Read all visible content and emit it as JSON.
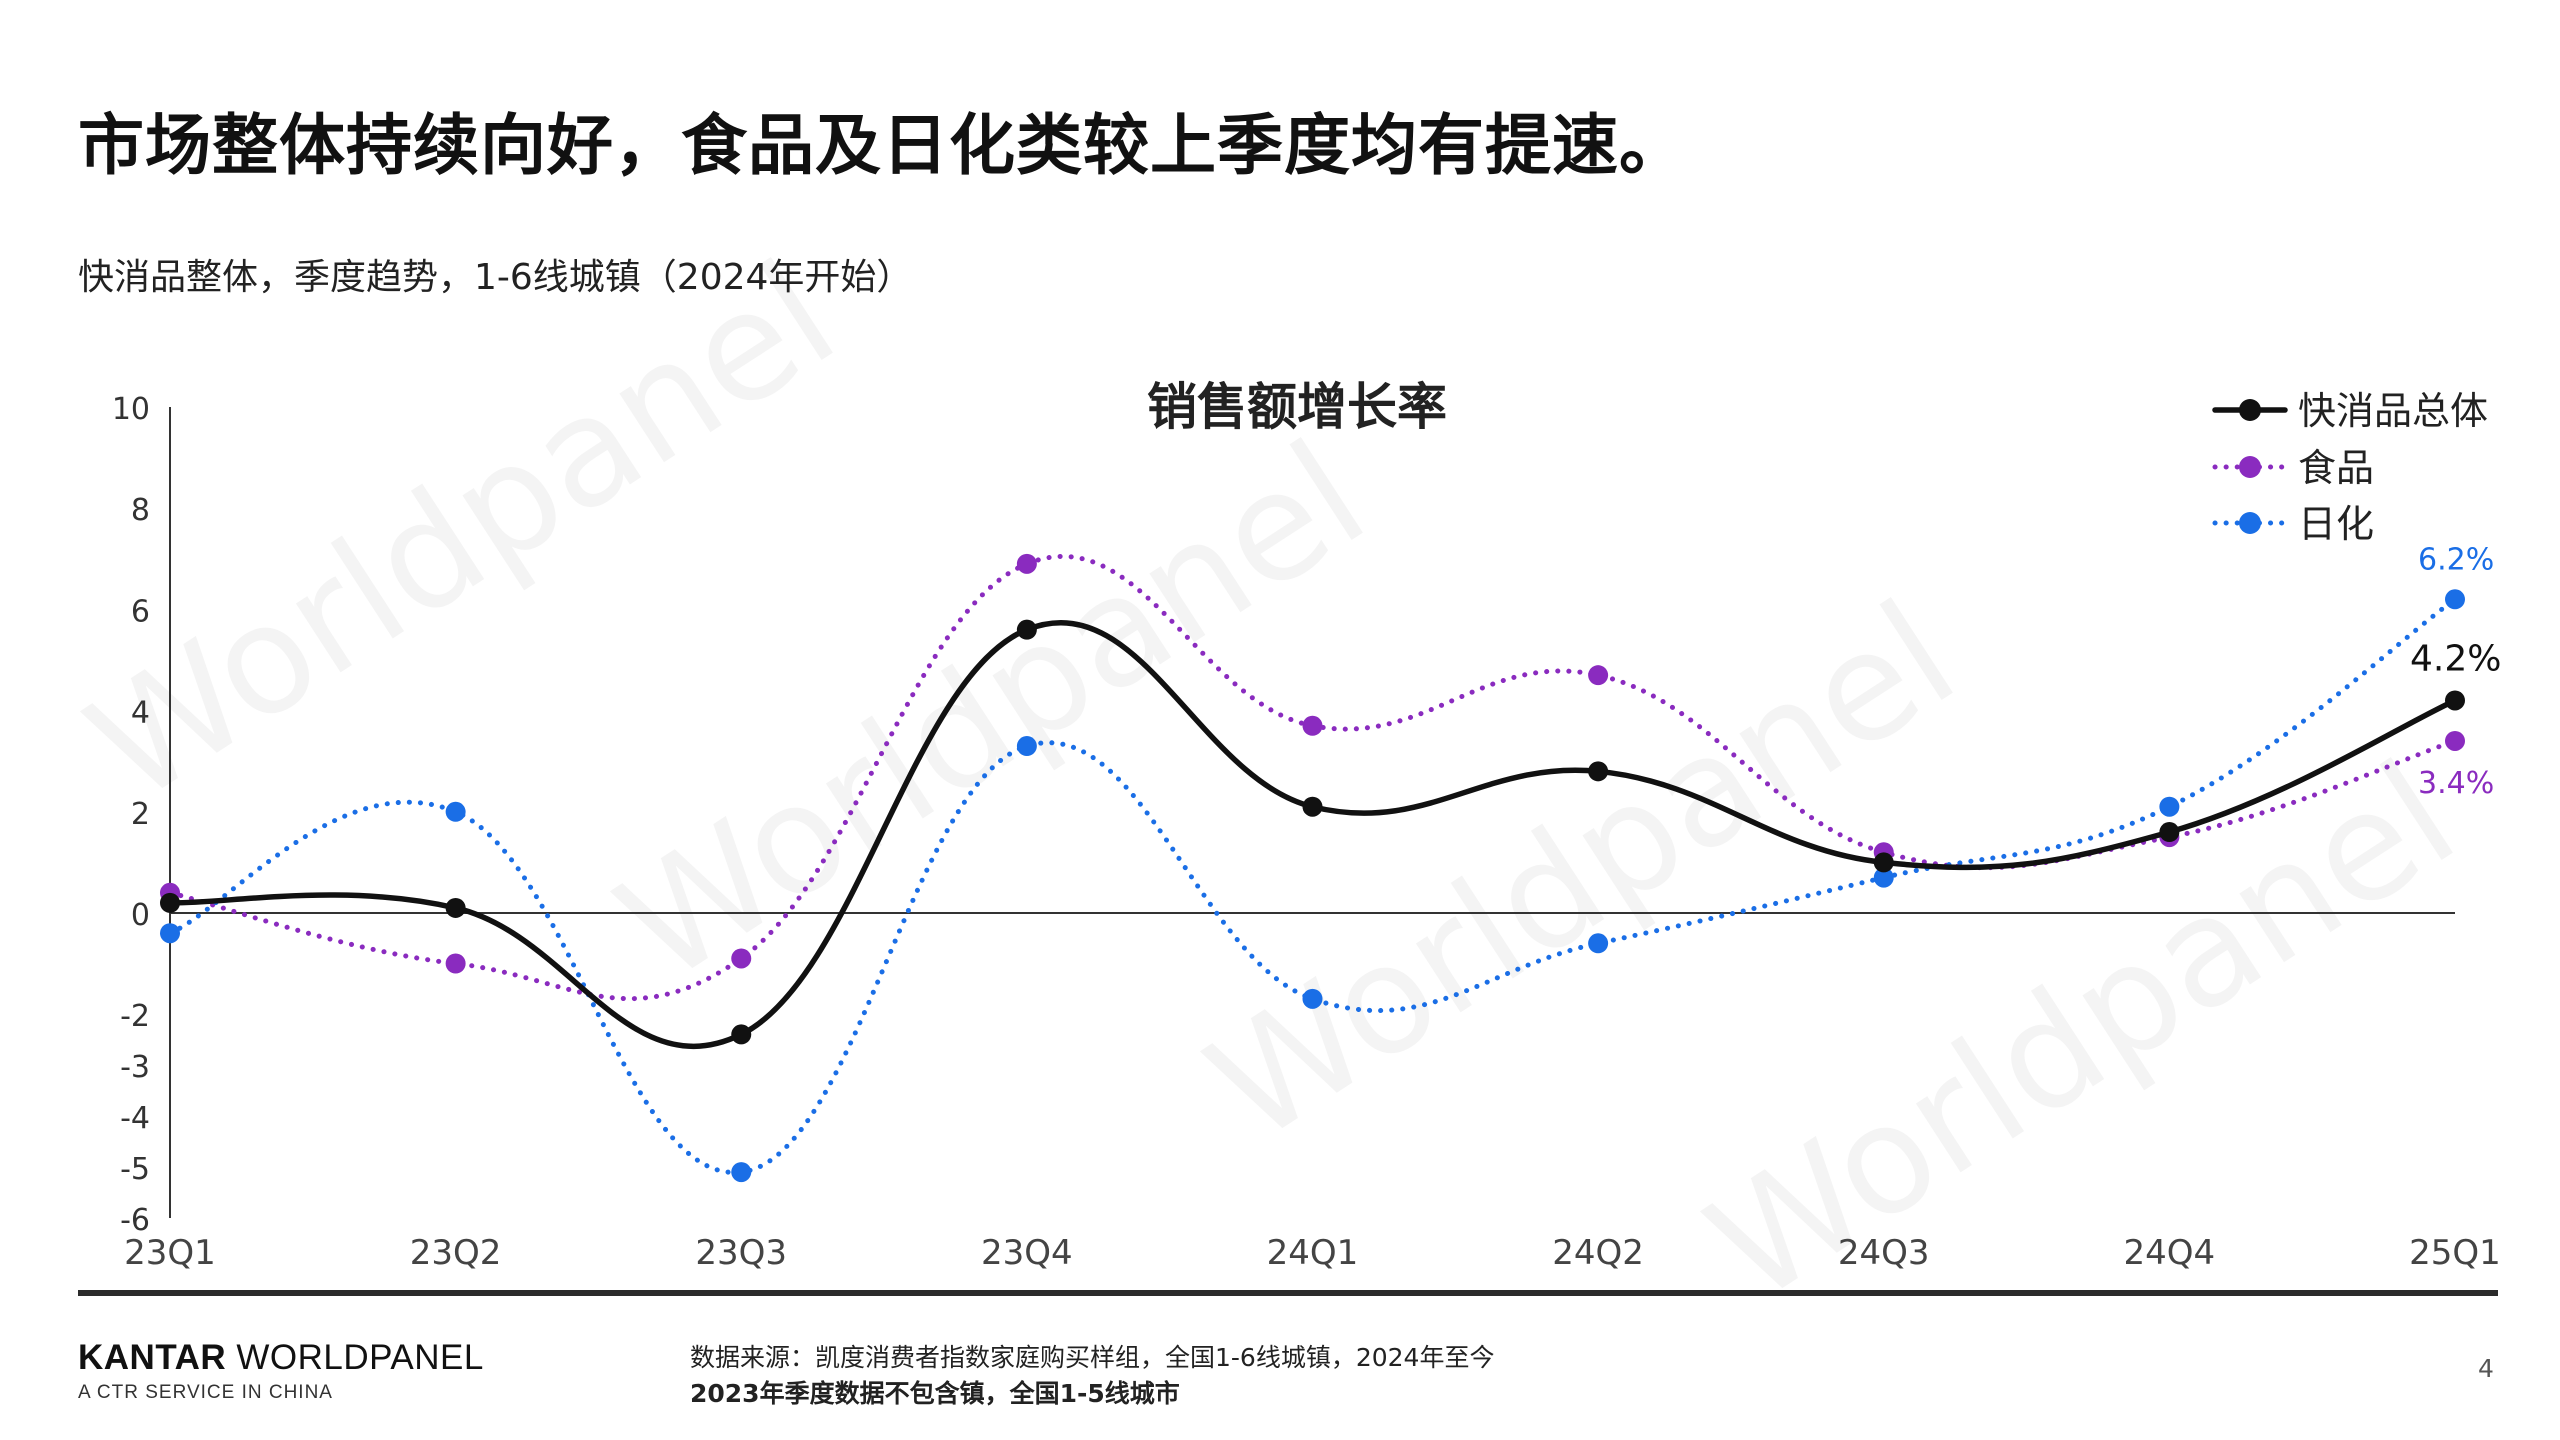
{
  "header": {
    "title": "市场整体持续向好，食品及日化类较上季度均有提速。",
    "subtitle": "快消品整体，季度趋势，1-6线城镇（2024年开始）"
  },
  "watermark": "Worldpanel",
  "chart_data": {
    "type": "line",
    "title": "销售额增长率",
    "categories": [
      "23Q1",
      "23Q2",
      "23Q3",
      "23Q4",
      "24Q1",
      "24Q2",
      "24Q3",
      "24Q4",
      "25Q1"
    ],
    "y_ticks": [
      10,
      8,
      6,
      4,
      2,
      0,
      -2,
      -3,
      -4,
      -5,
      -6
    ],
    "ylim": [
      -6,
      10
    ],
    "legend_position": "top-right",
    "grid": false,
    "series": [
      {
        "name": "快消品总体",
        "color": "#111111",
        "style": "solid",
        "values": [
          0.2,
          0.1,
          -2.4,
          5.6,
          2.1,
          2.8,
          1.0,
          1.6,
          4.2
        ],
        "end_label": "4.2%"
      },
      {
        "name": "食品",
        "color": "#8A2BBF",
        "style": "dotted",
        "values": [
          0.4,
          -1.0,
          -0.9,
          6.9,
          3.7,
          4.7,
          1.2,
          1.5,
          3.4
        ],
        "end_label": "3.4%"
      },
      {
        "name": "日化",
        "color": "#1a6ee6",
        "style": "dotted",
        "values": [
          -0.4,
          2.0,
          -5.1,
          3.3,
          -1.7,
          -0.6,
          0.7,
          2.1,
          6.2
        ],
        "end_label": "6.2%"
      }
    ]
  },
  "footer": {
    "brand_bold": "KANTAR",
    "brand_rest": " WORLDPANEL",
    "brand_sub": "A CTR SERVICE IN CHINA",
    "source_line1": "数据来源：凯度消费者指数家庭购买样组，全国1-6线城镇，2024年至今",
    "source_line2": "2023年季度数据不包含镇，全国1-5线城市",
    "page": "4"
  }
}
